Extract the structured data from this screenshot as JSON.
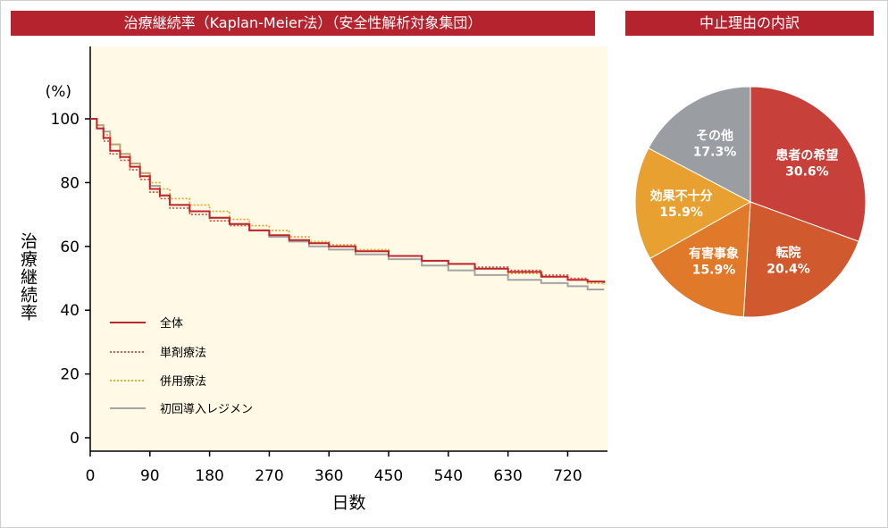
{
  "left_title": "治療継続率（Kaplan-Meier法）（安全性解析対象集団）",
  "right_title": "中止理由の内訳",
  "chart_data": [
    {
      "type": "line",
      "title": "治療継続率（Kaplan-Meier法）（安全性解析対象集団）",
      "xlabel": "日数",
      "ylabel": "治療継続率",
      "yunit": "(%)",
      "xlim": [
        0,
        780
      ],
      "ylim": [
        0,
        105
      ],
      "xticks": [
        "0",
        "90",
        "180",
        "270",
        "360",
        "450",
        "540",
        "630",
        "720"
      ],
      "yticks": [
        "0",
        "20",
        "40",
        "60",
        "80",
        "100"
      ],
      "legend_position": "bottom-left",
      "series": [
        {
          "name": "全体",
          "color": "#c0272d",
          "style": "solid",
          "x": [
            0,
            10,
            20,
            30,
            45,
            60,
            75,
            90,
            105,
            120,
            150,
            180,
            210,
            240,
            270,
            300,
            330,
            360,
            400,
            450,
            500,
            540,
            580,
            630,
            680,
            720,
            750,
            775
          ],
          "y": [
            100,
            97,
            94,
            90,
            88,
            85,
            82,
            78,
            76,
            73,
            71,
            69,
            67,
            65,
            63.5,
            62,
            61,
            60,
            58.5,
            57,
            55.5,
            54.5,
            53,
            52,
            50.5,
            49.5,
            49,
            48.5
          ]
        },
        {
          "name": "単剤療法",
          "color": "#d94a3a",
          "style": "dotted",
          "x": [
            0,
            10,
            20,
            30,
            45,
            60,
            75,
            90,
            105,
            120,
            150,
            180,
            210,
            240,
            270,
            300,
            330,
            360,
            400,
            450,
            500,
            540,
            580,
            630,
            680,
            720,
            750,
            775
          ],
          "y": [
            100,
            97,
            93,
            89,
            87,
            84,
            81,
            77,
            75,
            72,
            70,
            68,
            66.5,
            65,
            63.5,
            62,
            61,
            60,
            58.5,
            57,
            55.5,
            54.5,
            53.5,
            52.5,
            51,
            50,
            49,
            49
          ]
        },
        {
          "name": "併用療法",
          "color": "#e8a020",
          "style": "dotted",
          "x": [
            0,
            10,
            20,
            30,
            45,
            60,
            75,
            90,
            105,
            120,
            150,
            180,
            210,
            240,
            270,
            300,
            330,
            360,
            400,
            450,
            500,
            540,
            580,
            630,
            680,
            720,
            750,
            775
          ],
          "y": [
            100,
            98,
            95,
            92,
            89,
            86,
            83,
            80,
            78,
            75,
            73,
            71,
            68.5,
            66.5,
            65,
            63,
            61.5,
            60.5,
            59,
            57,
            55.5,
            54.5,
            53,
            51.5,
            50.5,
            49.5,
            48.5,
            48
          ]
        },
        {
          "name": "初回導入レジメン",
          "color": "#a4a4a4",
          "style": "solid",
          "x": [
            0,
            10,
            20,
            30,
            45,
            60,
            75,
            90,
            105,
            120,
            150,
            180,
            210,
            240,
            270,
            300,
            330,
            360,
            400,
            450,
            500,
            540,
            580,
            630,
            680,
            720,
            750,
            775
          ],
          "y": [
            100,
            98,
            96,
            92,
            89,
            86,
            83,
            79,
            76,
            73,
            71,
            69,
            67,
            65,
            63,
            61.5,
            60,
            59,
            57.5,
            56,
            54,
            52.5,
            51,
            49.5,
            48.5,
            47.5,
            46.5,
            46.5
          ]
        }
      ]
    },
    {
      "type": "pie",
      "title": "中止理由の内訳",
      "labels": [
        "患者の希望",
        "転院",
        "有害事象",
        "効果不十分",
        "その他"
      ],
      "values": [
        30.6,
        20.4,
        15.9,
        15.9,
        17.3
      ],
      "display_values": [
        "30.6%",
        "20.4%",
        "15.9%",
        "15.9%",
        "17.3%"
      ],
      "colors": [
        "#c8403a",
        "#d05a2e",
        "#e07a2a",
        "#e8a030",
        "#9a9ea2"
      ]
    }
  ]
}
